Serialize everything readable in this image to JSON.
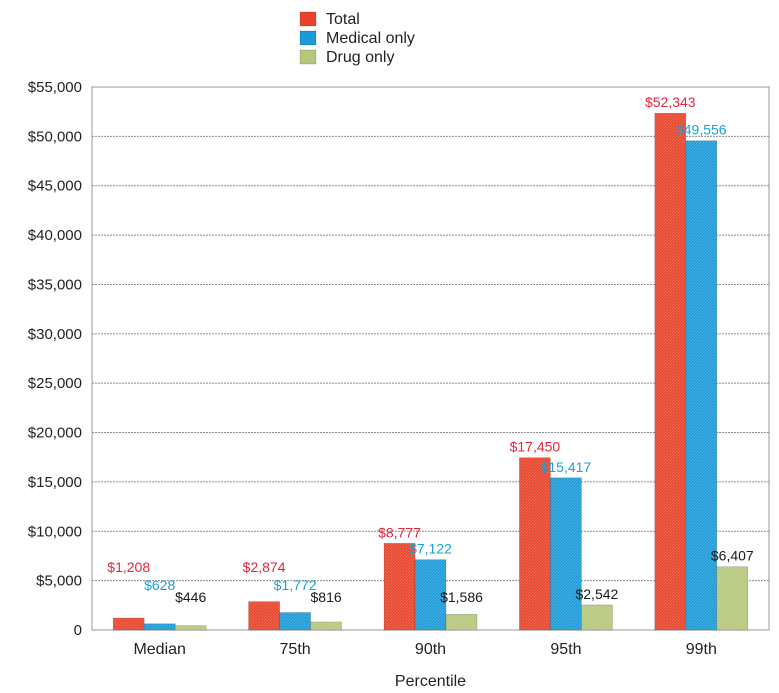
{
  "chart_data": {
    "type": "bar",
    "title": "",
    "xlabel": "Percentile",
    "ylabel": "",
    "categories": [
      "Median",
      "75th",
      "90th",
      "95th",
      "99th"
    ],
    "ylim": [
      0,
      55000
    ],
    "yticks": [
      0,
      5000,
      10000,
      15000,
      20000,
      25000,
      30000,
      35000,
      40000,
      45000,
      50000,
      55000
    ],
    "ytick_labels": [
      "0",
      "$5,000",
      "$10,000",
      "$15,000",
      "$20,000",
      "$25,000",
      "$30,000",
      "$35,000",
      "$40,000",
      "$45,000",
      "$50,000",
      "$55,000"
    ],
    "grid": true,
    "legend_position": "top-center",
    "series": [
      {
        "name": "Total",
        "color": "#e8432a",
        "label_color": "#e3273f",
        "values": [
          1208,
          2874,
          8777,
          17450,
          52343
        ],
        "labels": [
          "$1,208",
          "$2,874",
          "$8,777",
          "$17,450",
          "$52,343"
        ]
      },
      {
        "name": "Medical only",
        "color": "#1a9ad7",
        "label_color": "#18a3d8",
        "values": [
          628,
          1772,
          7122,
          15417,
          49556
        ],
        "labels": [
          "$628",
          "$1,772",
          "$7,122",
          "$15,417",
          "$49,556"
        ]
      },
      {
        "name": "Drug only",
        "color": "#b5c77a",
        "label_color": "#1a1a1a",
        "values": [
          446,
          816,
          1586,
          2542,
          6407
        ],
        "labels": [
          "$446",
          "$816",
          "$1,586",
          "$2,542",
          "$6,407"
        ]
      }
    ]
  }
}
